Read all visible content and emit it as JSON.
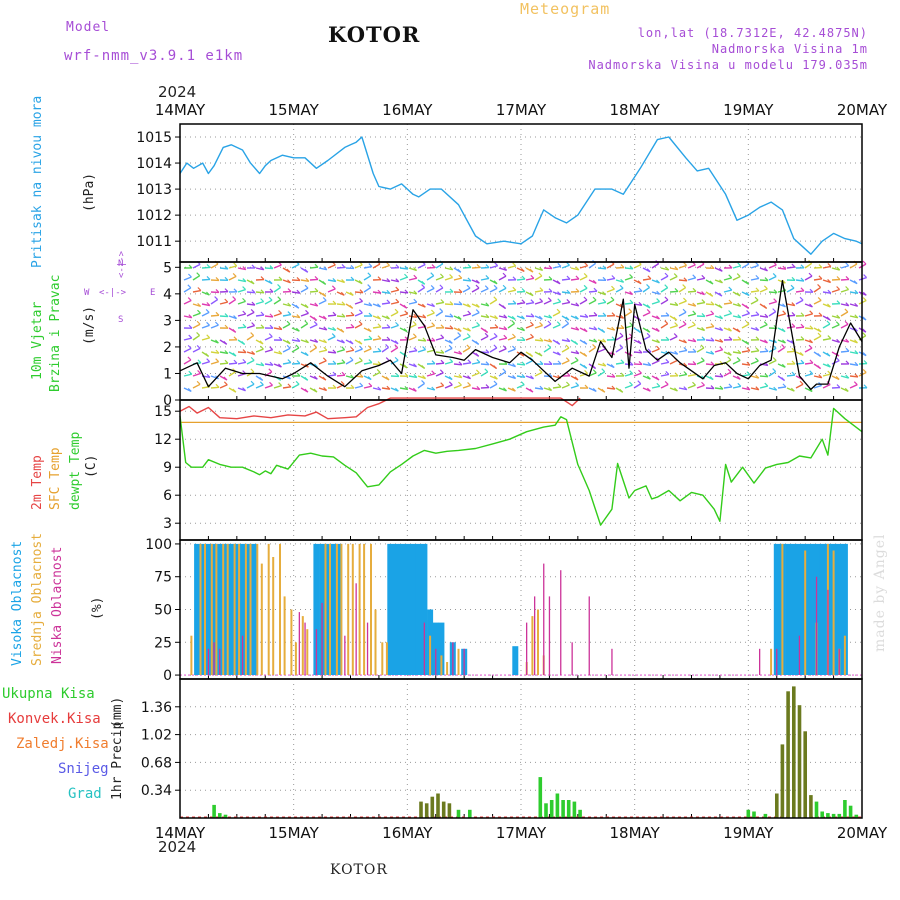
{
  "header": {
    "model_label": "Model",
    "model_name": "wrf-nmm_v3.9.1 e1km",
    "title": "KOTOR",
    "subtitle": "Meteogram",
    "lonlat": "lon,lat (18.7312E, 42.4875N)",
    "elevation": "Nadmorska Visina 1m",
    "model_elevation": "Nadmorska Visina u modelu 179.035m",
    "footer": "KOTOR",
    "watermark": "made by Angel",
    "year": "2024"
  },
  "colors": {
    "pressure": "#29a3e6",
    "temp2m": "#e64545",
    "sfc": "#e6a12e",
    "dewpt": "#33cc1a",
    "high_cloud": "#1aa3e6",
    "mid_cloud": "#e6ad3d",
    "low_cloud": "#cc3399",
    "total_precip": "#2ecc2e",
    "convective": "#e63c3c",
    "frozen": "#f07d2e",
    "snow": "#5a5ae6",
    "graupel": "#26c2c2",
    "wind_speed": "#000000",
    "wind_gust": "#e63c3c"
  },
  "chart_data": {
    "type": "line",
    "time_axis": {
      "start": "2024-05-14",
      "end": "2024-05-20",
      "tick_labels": [
        "14MAY",
        "15MAY",
        "16MAY",
        "17MAY",
        "18MAY",
        "19MAY",
        "20MAY"
      ],
      "year": "2024"
    },
    "panels": [
      {
        "id": "pressure",
        "ylabel": "Pritisak na nivou mora",
        "unit": "(hPa)",
        "ylim": [
          1010.2,
          1015.5
        ],
        "yticks": [
          1011,
          1012,
          1013,
          1014,
          1015
        ],
        "series": [
          {
            "name": "Pritisak na nivou mora",
            "x": [
              0,
              0.06,
              0.12,
              0.2,
              0.25,
              0.3,
              0.38,
              0.45,
              0.55,
              0.62,
              0.7,
              0.75,
              0.8,
              0.9,
              1.0,
              1.1,
              1.2,
              1.3,
              1.45,
              1.5,
              1.55,
              1.6,
              1.7,
              1.75,
              1.85,
              1.95,
              2.05,
              2.1,
              2.2,
              2.3,
              2.45,
              2.6,
              2.7,
              2.85,
              3.0,
              3.1,
              3.15,
              3.2,
              3.3,
              3.4,
              3.5,
              3.65,
              3.8,
              3.9,
              4.05,
              4.2,
              4.3,
              4.45,
              4.55,
              4.65,
              4.8,
              4.9,
              5.0,
              5.1,
              5.2,
              5.3,
              5.4,
              5.45,
              5.55,
              5.65,
              5.75,
              5.85,
              5.95,
              6.0
            ],
            "values": [
              1013.6,
              1014.0,
              1013.8,
              1014.0,
              1013.6,
              1013.9,
              1014.6,
              1014.7,
              1014.5,
              1014.0,
              1013.6,
              1013.9,
              1014.1,
              1014.3,
              1014.2,
              1014.2,
              1013.8,
              1014.1,
              1014.6,
              1014.7,
              1014.8,
              1015.0,
              1013.6,
              1013.1,
              1013.0,
              1013.2,
              1012.8,
              1012.7,
              1013.0,
              1013.0,
              1012.4,
              1011.2,
              1010.9,
              1011.0,
              1010.9,
              1011.2,
              1011.7,
              1012.2,
              1011.9,
              1011.7,
              1012.0,
              1013.0,
              1013.0,
              1012.8,
              1013.8,
              1014.9,
              1015.0,
              1014.2,
              1013.7,
              1013.8,
              1012.8,
              1011.8,
              1012.0,
              1012.3,
              1012.5,
              1012.2,
              1011.1,
              1010.9,
              1010.5,
              1011.0,
              1011.3,
              1011.1,
              1011.0,
              1010.9
            ]
          }
        ]
      },
      {
        "id": "wind",
        "ylabel": "10m Vjetar",
        "ylabel2": "Brzina i Pravac",
        "unit": "(m/s)",
        "compass": {
          "n": "N",
          "s": "S",
          "e": "E",
          "w": "W"
        },
        "ylim": [
          0,
          5.2
        ],
        "yticks": [
          0,
          1,
          2,
          3,
          4,
          5
        ],
        "series": [
          {
            "name": "wind speed",
            "x": [
              0,
              0.15,
              0.25,
              0.4,
              0.55,
              0.7,
              0.9,
              1.0,
              1.15,
              1.3,
              1.45,
              1.6,
              1.75,
              1.85,
              1.95,
              2.05,
              2.15,
              2.25,
              2.4,
              2.5,
              2.6,
              2.75,
              2.9,
              3.0,
              3.1,
              3.2,
              3.3,
              3.45,
              3.6,
              3.7,
              3.8,
              3.9,
              3.95,
              4.0,
              4.1,
              4.2,
              4.3,
              4.4,
              4.5,
              4.6,
              4.7,
              4.8,
              4.9,
              5.0,
              5.1,
              5.2,
              5.3,
              5.35,
              5.45,
              5.55,
              5.6,
              5.7,
              5.8,
              5.9,
              6.0
            ],
            "values": [
              1.1,
              1.4,
              0.5,
              1.2,
              1.0,
              1.0,
              0.8,
              1.0,
              1.4,
              0.9,
              0.5,
              1.1,
              1.3,
              1.5,
              1.0,
              3.4,
              2.8,
              1.7,
              1.6,
              1.5,
              1.9,
              1.6,
              1.4,
              1.8,
              1.5,
              1.1,
              0.7,
              1.2,
              0.9,
              2.2,
              1.6,
              3.8,
              1.2,
              3.6,
              1.9,
              1.5,
              1.8,
              1.4,
              1.1,
              0.8,
              1.3,
              1.4,
              1.0,
              0.8,
              1.3,
              1.5,
              4.5,
              3.3,
              0.9,
              0.4,
              0.6,
              0.6,
              2.0,
              2.9,
              2.2
            ]
          }
        ]
      },
      {
        "id": "temperature",
        "ylabel": "2m Temp",
        "ylabel2": "SFC Temp",
        "ylabel3": "dewpt Temp",
        "unit": "(C)",
        "ylim": [
          1.2,
          16.2
        ],
        "yticks": [
          3,
          6,
          9,
          12,
          15
        ],
        "series": [
          {
            "name": "2m Temp",
            "x": [
              0,
              0.08,
              0.15,
              0.25,
              0.35,
              0.5,
              0.65,
              0.8,
              0.95,
              1.1,
              1.2,
              1.3,
              1.45,
              1.55,
              1.65,
              1.75,
              1.85,
              3.35,
              3.45,
              3.52
            ],
            "values": [
              15.0,
              15.5,
              14.8,
              15.4,
              14.3,
              14.2,
              14.5,
              14.3,
              14.6,
              14.5,
              14.9,
              14.2,
              14.3,
              14.4,
              15.4,
              15.8,
              16.4,
              16.4,
              15.6,
              16.4
            ]
          },
          {
            "name": "SFC Temp",
            "x": [
              0,
              6.0
            ],
            "values": [
              13.8,
              13.8
            ]
          },
          {
            "name": "dewpt Temp",
            "x": [
              0,
              0.05,
              0.1,
              0.2,
              0.25,
              0.35,
              0.45,
              0.55,
              0.65,
              0.7,
              0.75,
              0.8,
              0.85,
              0.95,
              1.05,
              1.15,
              1.25,
              1.35,
              1.45,
              1.55,
              1.65,
              1.75,
              1.85,
              1.95,
              2.05,
              2.15,
              2.25,
              2.35,
              2.45,
              2.6,
              2.75,
              2.9,
              3.05,
              3.2,
              3.3,
              3.35,
              3.4,
              3.5,
              3.6,
              3.7,
              3.8,
              3.85,
              3.95,
              4.0,
              4.1,
              4.15,
              4.2,
              4.3,
              4.4,
              4.5,
              4.6,
              4.7,
              4.75,
              4.8,
              4.85,
              4.95,
              5.05,
              5.15,
              5.25,
              5.35,
              5.45,
              5.55,
              5.65,
              5.7,
              5.75,
              5.85,
              6.0
            ],
            "values": [
              14.5,
              9.5,
              9.0,
              9.0,
              9.8,
              9.3,
              9.0,
              9.0,
              8.5,
              8.2,
              8.6,
              8.3,
              9.2,
              8.8,
              10.3,
              10.5,
              10.2,
              10.1,
              9.2,
              8.4,
              6.9,
              7.1,
              8.5,
              9.3,
              10.2,
              10.8,
              10.5,
              10.7,
              10.8,
              11.0,
              11.5,
              12.0,
              12.8,
              13.3,
              13.5,
              14.4,
              14.1,
              9.3,
              6.5,
              2.8,
              4.5,
              9.4,
              5.7,
              6.5,
              7.0,
              5.6,
              5.8,
              6.5,
              5.4,
              6.3,
              6.0,
              4.5,
              3.2,
              9.3,
              7.4,
              9.0,
              7.3,
              8.9,
              9.3,
              9.5,
              10.2,
              10.0,
              12.0,
              10.3,
              15.3,
              14.2,
              12.8
            ]
          }
        ]
      },
      {
        "id": "clouds",
        "ylabel": "Visoka Oblacnost",
        "ylabel2": "Srednja Oblacnost",
        "ylabel3": "Niska Oblacnost",
        "unit": "(%)",
        "ylim": [
          -3,
          103
        ],
        "yticks": [
          0,
          25,
          50,
          75,
          100
        ],
        "series": [
          {
            "name": "Visoka Oblacnost",
            "type": "bar",
            "x": [
              0.15,
              0.2,
              0.25,
              0.3,
              0.35,
              0.4,
              0.45,
              0.5,
              0.55,
              0.6,
              0.65,
              1.2,
              1.25,
              1.3,
              1.35,
              1.4,
              1.85,
              1.9,
              1.95,
              2.0,
              2.05,
              2.1,
              2.15,
              2.2,
              2.25,
              2.3,
              2.4,
              2.5,
              2.95,
              5.25,
              5.3,
              5.35,
              5.4,
              5.45,
              5.5,
              5.55,
              5.6,
              5.65,
              5.7,
              5.75,
              5.8,
              5.85
            ],
            "values": [
              100,
              100,
              100,
              100,
              100,
              100,
              100,
              100,
              100,
              100,
              100,
              100,
              100,
              100,
              100,
              100,
              100,
              100,
              100,
              100,
              100,
              100,
              100,
              50,
              40,
              40,
              25,
              20,
              22,
              100,
              100,
              100,
              100,
              100,
              100,
              100,
              100,
              100,
              100,
              100,
              100,
              100
            ]
          },
          {
            "name": "Srednja Oblacnost",
            "type": "bar",
            "x": [
              0.1,
              0.18,
              0.22,
              0.28,
              0.32,
              0.38,
              0.42,
              0.48,
              0.52,
              0.58,
              0.62,
              0.68,
              0.72,
              0.78,
              0.82,
              0.88,
              0.92,
              0.98,
              1.02,
              1.08,
              1.12,
              1.28,
              1.32,
              1.38,
              1.42,
              1.48,
              1.52,
              1.58,
              1.62,
              1.68,
              1.72,
              1.78,
              1.82,
              2.2,
              2.3,
              2.35,
              2.45,
              3.05,
              3.1,
              3.15,
              3.2,
              5.2,
              5.3,
              5.5,
              5.6,
              5.7,
              5.75,
              5.8,
              5.85
            ],
            "values": [
              30,
              100,
              100,
              100,
              100,
              100,
              100,
              100,
              100,
              100,
              100,
              100,
              85,
              100,
              90,
              100,
              60,
              50,
              25,
              45,
              35,
              100,
              100,
              100,
              100,
              100,
              100,
              100,
              100,
              100,
              50,
              25,
              25,
              30,
              15,
              10,
              20,
              10,
              45,
              50,
              15,
              20,
              100,
              95,
              40,
              100,
              95,
              20,
              30
            ]
          },
          {
            "name": "Niska Oblacnost",
            "type": "bar",
            "x": [
              0.25,
              0.3,
              0.35,
              0.55,
              1.05,
              1.1,
              1.2,
              1.25,
              1.45,
              1.55,
              1.65,
              2.15,
              2.25,
              2.4,
              2.5,
              3.05,
              3.12,
              3.2,
              3.25,
              3.35,
              3.45,
              3.6,
              3.8,
              5.1,
              5.25,
              5.45,
              5.6,
              5.7,
              5.8
            ],
            "values": [
              20,
              25,
              20,
              30,
              48,
              40,
              35,
              55,
              30,
              70,
              40,
              40,
              20,
              25,
              20,
              40,
              60,
              85,
              60,
              80,
              25,
              60,
              20,
              20,
              20,
              30,
              75,
              65,
              20
            ]
          }
        ]
      },
      {
        "id": "precip",
        "ylabel": "1hr Precip",
        "unit": "(mm)",
        "legend": [
          "Ukupna Kisa",
          "Konvek.Kisa",
          "Zaledj.Kisa",
          "Snijeg",
          "Grad"
        ],
        "ylim": [
          0,
          1.7
        ],
        "yticks": [
          0.34,
          0.68,
          1.02,
          1.36
        ],
        "series": [
          {
            "name": "Ukupna Kisa",
            "type": "bar",
            "x": [
              0.3,
              0.35,
              0.4,
              2.12,
              2.17,
              2.22,
              2.27,
              2.32,
              2.37,
              2.45,
              2.55,
              3.17,
              3.22,
              3.27,
              3.32,
              3.37,
              3.42,
              3.47,
              3.52,
              5.0,
              5.05,
              5.15,
              5.25,
              5.3,
              5.35,
              5.4,
              5.45,
              5.5,
              5.55,
              5.6,
              5.65,
              5.7,
              5.75,
              5.8,
              5.85,
              5.9,
              5.95
            ],
            "values": [
              0.16,
              0.06,
              0.04,
              0.2,
              0.18,
              0.26,
              0.3,
              0.2,
              0.18,
              0.1,
              0.1,
              0.5,
              0.18,
              0.22,
              0.3,
              0.22,
              0.22,
              0.2,
              0.1,
              0.1,
              0.08,
              0.05,
              0.3,
              0.9,
              1.55,
              1.61,
              1.38,
              1.06,
              0.28,
              0.2,
              0.08,
              0.06,
              0.05,
              0.05,
              0.22,
              0.15,
              0.04
            ]
          }
        ]
      }
    ],
    "yaxis_labels": {
      "precip_legend": [
        "Ukupna Kisa",
        "Konvek.Kisa",
        "Zaledj.Kisa",
        "Snijeg",
        "Grad"
      ]
    }
  }
}
